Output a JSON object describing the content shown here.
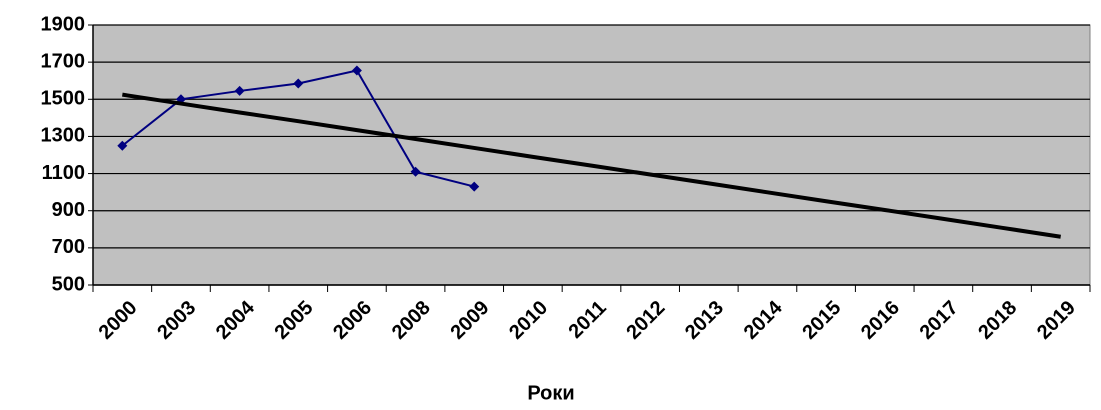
{
  "chart_data": {
    "type": "line",
    "x_label": "Роки",
    "categories": [
      "2000",
      "2003",
      "2004",
      "2005",
      "2006",
      "2008",
      "2009",
      "2010",
      "2011",
      "2012",
      "2013",
      "2014",
      "2015",
      "2016",
      "2017",
      "2018",
      "2019"
    ],
    "series": [
      {
        "color": "#000080",
        "values": [
          1250,
          1500,
          1545,
          1585,
          1655,
          1110,
          1030,
          null,
          null,
          null,
          null,
          null,
          null,
          null,
          null,
          null,
          null
        ]
      },
      {
        "color": "#000000",
        "values": [
          1525,
          1477,
          1429,
          1382,
          1334,
          1286,
          1238,
          1190,
          1143,
          1095,
          1047,
          999,
          951,
          904,
          856,
          808,
          760
        ]
      }
    ],
    "ylim": [
      500,
      1900
    ],
    "yticks": [
      500,
      700,
      900,
      1100,
      1300,
      1500,
      1700,
      1900
    ],
    "grid": true,
    "plot_background": "#c0c0c0"
  }
}
